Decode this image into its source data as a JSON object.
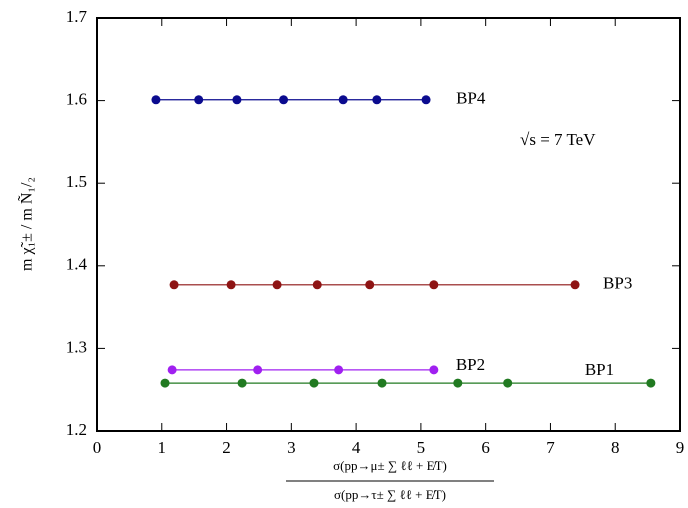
{
  "chart_data": {
    "type": "line",
    "ylabel": "m χ̃₁± / m Ñ₁/₂",
    "xlabel": {
      "numerator": "σ(pp→μ± ∑ ℓℓ + E̸T)",
      "denominator": "σ(pp→τ± ∑ ℓℓ + E̸T)"
    },
    "annotation": "√s = 7 TeV",
    "xlim": [
      0,
      9
    ],
    "xticks": [
      0,
      1,
      2,
      3,
      4,
      5,
      6,
      7,
      8,
      9
    ],
    "ylim": [
      1.2,
      1.7
    ],
    "yticks": [
      1.2,
      1.3,
      1.4,
      1.5,
      1.6,
      1.7
    ],
    "series": [
      {
        "name": "BP4",
        "color": "#0b0b8f",
        "x": [
          0.91,
          1.57,
          2.16,
          2.88,
          3.8,
          4.32,
          5.08
        ],
        "values": [
          1.601,
          1.601,
          1.601,
          1.601,
          1.601,
          1.601,
          1.601
        ]
      },
      {
        "name": "BP3",
        "color": "#8e1414",
        "x": [
          1.19,
          2.07,
          2.78,
          3.4,
          4.21,
          5.2,
          7.38
        ],
        "values": [
          1.377,
          1.377,
          1.377,
          1.377,
          1.377,
          1.377,
          1.377
        ]
      },
      {
        "name": "BP2",
        "color": "#a020f0",
        "x": [
          1.16,
          2.48,
          3.73,
          5.2
        ],
        "values": [
          1.274,
          1.274,
          1.274,
          1.274
        ]
      },
      {
        "name": "BP1",
        "color": "#217a21",
        "x": [
          1.05,
          2.24,
          3.35,
          4.4,
          5.57,
          6.34,
          8.55
        ],
        "values": [
          1.258,
          1.258,
          1.258,
          1.258,
          1.258,
          1.258,
          1.258
        ]
      }
    ]
  }
}
